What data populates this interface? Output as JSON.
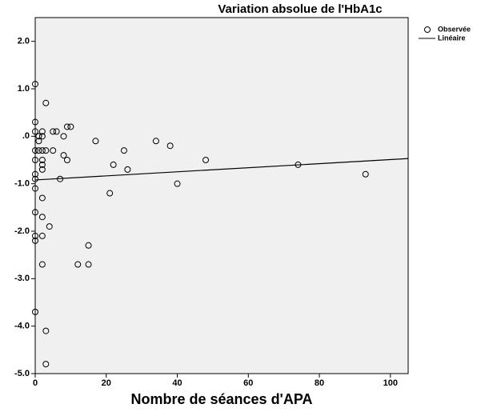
{
  "chart_data": {
    "type": "scatter",
    "title": "Variation absolue de l'HbA1c",
    "x_label": "Nombre de séances d'APA",
    "xlim": [
      0,
      105
    ],
    "xticks": [
      0,
      20,
      40,
      60,
      80,
      100
    ],
    "ylim": [
      -5,
      2.5
    ],
    "yticks": [
      {
        "value": 2,
        "label": "2.0"
      },
      {
        "value": 1,
        "label": "1.0"
      },
      {
        "value": 0,
        "label": ".0"
      },
      {
        "value": -1,
        "label": "-1.0"
      },
      {
        "value": -2,
        "label": "-2.0"
      },
      {
        "value": -3,
        "label": "-3.0"
      },
      {
        "value": -4,
        "label": "-4.0"
      },
      {
        "value": -5,
        "label": "-5.0"
      }
    ],
    "legend": "right",
    "series": [
      {
        "name": "Observée",
        "kind": "scatter",
        "color": "#000000",
        "x": [
          0,
          0,
          0,
          0,
          0,
          0,
          0,
          0,
          0,
          0,
          0,
          0,
          1,
          1,
          1,
          2,
          2,
          2,
          2,
          2,
          2,
          2,
          2,
          2,
          2,
          3,
          3,
          3,
          3,
          4,
          5,
          5,
          6,
          7,
          8,
          8,
          9,
          9,
          10,
          12,
          15,
          15,
          17,
          21,
          22,
          25,
          26,
          34,
          38,
          40,
          48,
          74,
          93
        ],
        "values": [
          1.1,
          0.3,
          0.1,
          -0.3,
          -0.5,
          -0.8,
          -0.9,
          -1.1,
          -1.6,
          -2.1,
          -2.2,
          -3.7,
          0.0,
          -0.3,
          -0.1,
          0.1,
          -0.3,
          0.0,
          -0.5,
          -0.6,
          -0.7,
          -1.3,
          -1.7,
          -2.1,
          -2.7,
          0.7,
          -0.3,
          -4.1,
          -4.8,
          -1.9,
          0.1,
          -0.3,
          0.1,
          -0.9,
          0.0,
          -0.4,
          0.2,
          -0.5,
          0.2,
          -2.7,
          -2.3,
          -2.7,
          -0.1,
          -1.2,
          -0.6,
          -0.3,
          -0.7,
          -0.1,
          -0.2,
          -1.0,
          -0.5,
          -0.6,
          -0.8
        ]
      },
      {
        "name": "Linéaire",
        "kind": "line",
        "color": "#000000",
        "x": [
          0,
          105
        ],
        "values": [
          -0.92,
          -0.47
        ]
      }
    ]
  }
}
